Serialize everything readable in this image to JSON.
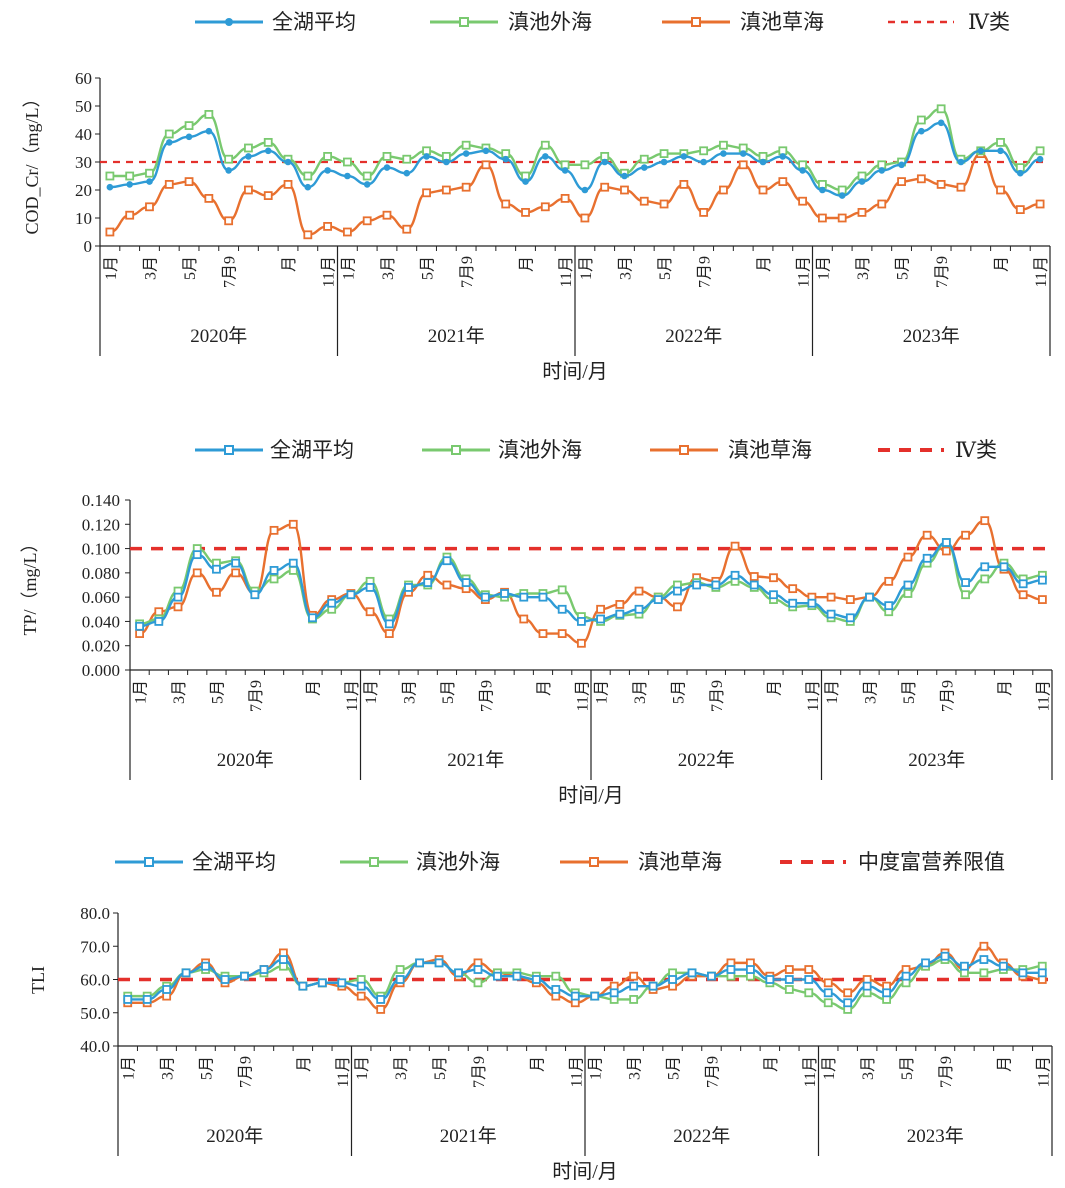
{
  "colors": {
    "avg": "#2e9bd6",
    "outer": "#79c96f",
    "caohai": "#e8702f",
    "limit": "#e4302b",
    "axis": "#222222"
  },
  "legend_names": {
    "avg": "全湖平均",
    "outer": "滇池外海",
    "caohai": "滇池草海"
  },
  "xaxis": {
    "month_labels": [
      "1月",
      "",
      "3月",
      "",
      "5月",
      "",
      "7月9",
      "",
      "",
      "月",
      "",
      "11月"
    ],
    "years": [
      "2020年",
      "2021年",
      "2022年",
      "2023年"
    ],
    "title": "时间/月"
  },
  "chart_data": [
    {
      "type": "line",
      "ylabel": "COD_Cr/（mg/L）",
      "ylim": [
        0,
        60
      ],
      "yticks": [
        0,
        10,
        20,
        30,
        40,
        50,
        60
      ],
      "ytick_labels": [
        "0",
        "10",
        "20",
        "30",
        "40",
        "50",
        "60"
      ],
      "limit": {
        "name": "Ⅳ类",
        "value": 30
      },
      "series": [
        {
          "name": "全湖平均",
          "key": "avg",
          "values": [
            21,
            22,
            23,
            37,
            39,
            41,
            27,
            32,
            34,
            30,
            21,
            27,
            25,
            22,
            28,
            26,
            32,
            30,
            33,
            34,
            31,
            23,
            32,
            27,
            20,
            30,
            25,
            28,
            30,
            32,
            30,
            33,
            33,
            30,
            32,
            27,
            20,
            18,
            23,
            27,
            29,
            41,
            44,
            30,
            34,
            34,
            26,
            31
          ]
        },
        {
          "name": "滇池外海",
          "key": "outer",
          "values": [
            25,
            25,
            26,
            40,
            43,
            47,
            31,
            35,
            37,
            31,
            25,
            32,
            30,
            25,
            32,
            31,
            34,
            32,
            36,
            35,
            33,
            25,
            36,
            29,
            29,
            32,
            26,
            31,
            33,
            33,
            34,
            36,
            35,
            32,
            34,
            29,
            22,
            20,
            25,
            29,
            30,
            45,
            49,
            31,
            34,
            37,
            28,
            34
          ]
        },
        {
          "name": "滇池草海",
          "key": "caohai",
          "values": [
            5,
            11,
            14,
            22,
            23,
            17,
            9,
            20,
            18,
            22,
            4,
            7,
            5,
            9,
            11,
            6,
            19,
            20,
            21,
            29,
            15,
            12,
            14,
            17,
            10,
            21,
            20,
            16,
            15,
            22,
            12,
            20,
            29,
            20,
            23,
            16,
            10,
            10,
            12,
            15,
            23,
            24,
            22,
            21,
            33,
            20,
            13,
            15
          ]
        }
      ]
    },
    {
      "type": "line",
      "ylabel": "TP/（mg/L）",
      "ylim": [
        0,
        0.14
      ],
      "yticks": [
        0,
        0.02,
        0.04,
        0.06,
        0.08,
        0.1,
        0.12,
        0.14
      ],
      "ytick_labels": [
        "0.000",
        "0.020",
        "0.040",
        "0.060",
        "0.080",
        "0.100",
        "0.120",
        "0.140"
      ],
      "limit": {
        "name": "Ⅳ类",
        "value": 0.1
      },
      "series": [
        {
          "name": "全湖平均",
          "key": "avg",
          "values": [
            0.036,
            0.04,
            0.06,
            0.095,
            0.083,
            0.088,
            0.062,
            0.082,
            0.088,
            0.043,
            0.055,
            0.062,
            0.068,
            0.038,
            0.068,
            0.072,
            0.09,
            0.072,
            0.06,
            0.063,
            0.06,
            0.06,
            0.05,
            0.04,
            0.042,
            0.046,
            0.05,
            0.058,
            0.065,
            0.07,
            0.07,
            0.078,
            0.07,
            0.062,
            0.055,
            0.055,
            0.046,
            0.043,
            0.06,
            0.053,
            0.07,
            0.092,
            0.105,
            0.072,
            0.085,
            0.085,
            0.071,
            0.074
          ]
        },
        {
          "name": "滇池外海",
          "key": "outer",
          "values": [
            0.038,
            0.042,
            0.065,
            0.1,
            0.088,
            0.09,
            0.065,
            0.075,
            0.082,
            0.042,
            0.05,
            0.062,
            0.073,
            0.042,
            0.07,
            0.07,
            0.093,
            0.075,
            0.062,
            0.06,
            0.063,
            0.063,
            0.066,
            0.044,
            0.04,
            0.045,
            0.046,
            0.06,
            0.07,
            0.072,
            0.068,
            0.073,
            0.068,
            0.058,
            0.052,
            0.053,
            0.043,
            0.04,
            0.06,
            0.048,
            0.063,
            0.088,
            0.105,
            0.062,
            0.075,
            0.088,
            0.075,
            0.078
          ]
        },
        {
          "name": "滇池草海",
          "key": "caohai",
          "values": [
            0.03,
            0.048,
            0.052,
            0.08,
            0.064,
            0.08,
            0.063,
            0.115,
            0.12,
            0.045,
            0.058,
            0.063,
            0.048,
            0.03,
            0.064,
            0.078,
            0.07,
            0.067,
            0.058,
            0.064,
            0.042,
            0.03,
            0.03,
            0.022,
            0.05,
            0.054,
            0.065,
            0.06,
            0.052,
            0.076,
            0.073,
            0.102,
            0.077,
            0.076,
            0.067,
            0.06,
            0.06,
            0.058,
            0.06,
            0.073,
            0.093,
            0.111,
            0.098,
            0.111,
            0.123,
            0.083,
            0.062,
            0.058
          ]
        }
      ]
    },
    {
      "type": "line",
      "ylabel": "TLI",
      "ylim": [
        40,
        80
      ],
      "yticks": [
        40,
        50,
        60,
        70,
        80
      ],
      "ytick_labels": [
        "40.0",
        "50.0",
        "60.0",
        "70.0",
        "80.0"
      ],
      "limit": {
        "name": "中度富营养限值",
        "value": 60
      },
      "series": [
        {
          "name": "全湖平均",
          "key": "avg",
          "values": [
            54,
            54,
            57,
            62,
            64,
            60,
            61,
            63,
            66,
            58,
            59,
            59,
            58,
            54,
            60,
            65,
            65,
            62,
            63,
            61,
            61,
            60,
            57,
            55,
            55,
            56,
            58,
            58,
            60,
            62,
            61,
            63,
            63,
            60,
            60,
            60,
            56,
            53,
            58,
            56,
            61,
            65,
            67,
            64,
            66,
            64,
            62,
            62
          ]
        },
        {
          "name": "滇池外海",
          "key": "outer",
          "values": [
            55,
            55,
            58,
            62,
            63,
            61,
            61,
            62,
            64,
            58,
            59,
            59,
            60,
            55,
            63,
            65,
            65,
            62,
            59,
            62,
            62,
            61,
            61,
            56,
            55,
            54,
            54,
            58,
            62,
            62,
            61,
            61,
            61,
            59,
            57,
            56,
            53,
            51,
            56,
            54,
            59,
            64,
            66,
            62,
            62,
            63,
            63,
            64
          ]
        },
        {
          "name": "滇池草海",
          "key": "caohai",
          "values": [
            53,
            53,
            55,
            62,
            65,
            59,
            61,
            63,
            68,
            58,
            59,
            58,
            55,
            51,
            59,
            65,
            66,
            61,
            65,
            62,
            61,
            59,
            55,
            53,
            55,
            58,
            61,
            57,
            58,
            61,
            61,
            65,
            65,
            61,
            63,
            63,
            59,
            56,
            60,
            58,
            63,
            64,
            68,
            63,
            70,
            65,
            61,
            60
          ]
        }
      ]
    }
  ]
}
